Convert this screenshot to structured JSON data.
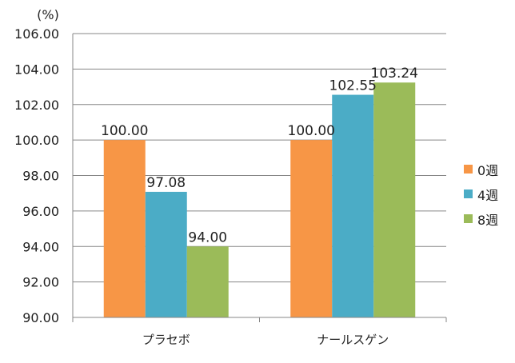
{
  "chart_data": {
    "type": "bar",
    "unit_label": "(%)",
    "categories": [
      "プラセボ",
      "ナールスゲン"
    ],
    "series": [
      {
        "name": "0週",
        "color": "#F79646",
        "values": [
          100.0,
          100.0
        ]
      },
      {
        "name": "4週",
        "color": "#4BACC6",
        "values": [
          97.08,
          102.55
        ]
      },
      {
        "name": "8週",
        "color": "#9BBB59",
        "values": [
          94.0,
          103.24
        ]
      }
    ],
    "ylim": [
      90,
      106
    ],
    "yticks": [
      "90.00",
      "92.00",
      "94.00",
      "96.00",
      "98.00",
      "100.00",
      "102.00",
      "104.00",
      "106.00"
    ],
    "grid": true,
    "legend_position": "right"
  }
}
